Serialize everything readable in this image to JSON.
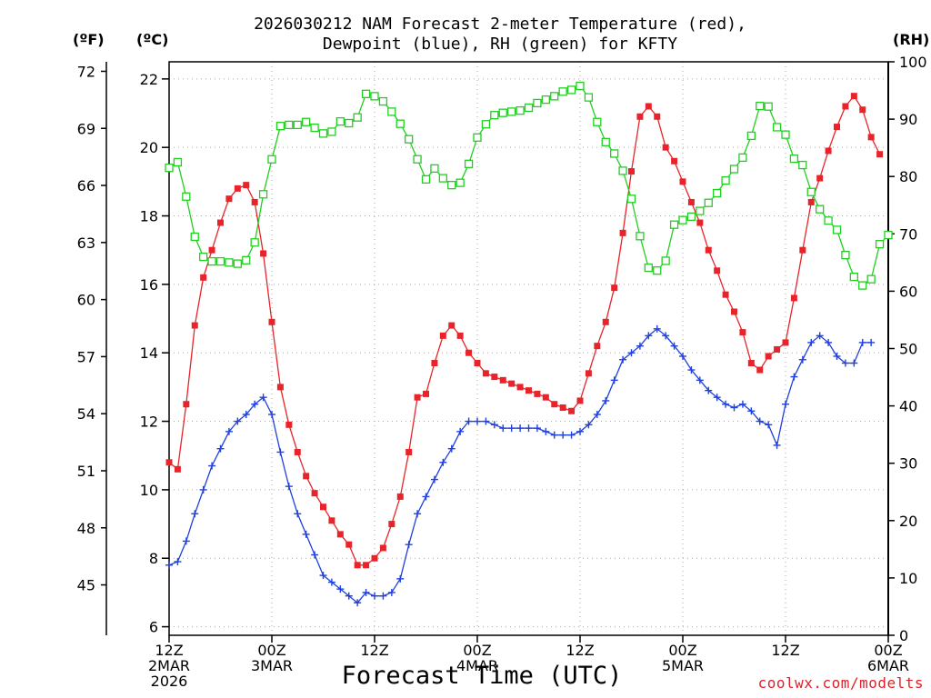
{
  "title": {
    "line1": "2026030212 NAM Forecast 2-meter Temperature (red),",
    "line2": "Dewpoint (blue), RH (green) for KFTY"
  },
  "units": {
    "fahrenheit": "(ºF)",
    "celsius": "(ºC)",
    "rh": "(RH)"
  },
  "xlabel": "Forecast Time (UTC)",
  "credit": "coolwx.com/modelts",
  "colors": {
    "temperature": "#e8242a",
    "dewpoint": "#2040e0",
    "rh": "#20d020",
    "grid": "#aaaaaa"
  },
  "chart_data": {
    "type": "line",
    "grid": true,
    "x": {
      "hours_range": [
        0,
        84
      ],
      "ticks": [
        {
          "hour": 0,
          "label": [
            "12Z",
            "2MAR",
            "2026"
          ]
        },
        {
          "hour": 12,
          "label": [
            "00Z",
            "3MAR"
          ]
        },
        {
          "hour": 24,
          "label": [
            "12Z"
          ]
        },
        {
          "hour": 36,
          "label": [
            "00Z",
            "4MAR"
          ]
        },
        {
          "hour": 48,
          "label": [
            "12Z"
          ]
        },
        {
          "hour": 60,
          "label": [
            "00Z",
            "5MAR"
          ]
        },
        {
          "hour": 72,
          "label": [
            "12Z"
          ]
        },
        {
          "hour": 84,
          "label": [
            "00Z",
            "6MAR"
          ]
        }
      ]
    },
    "y_celsius": {
      "range": [
        5.75,
        22.5
      ],
      "ticks": [
        "6",
        "8",
        "10",
        "12",
        "14",
        "16",
        "18",
        "20",
        "22"
      ]
    },
    "y_fahrenheit": {
      "ticks": [
        "45",
        "48",
        "51",
        "54",
        "57",
        "60",
        "63",
        "66",
        "69",
        "72"
      ]
    },
    "y_rh": {
      "range": [
        0,
        100
      ],
      "ticks": [
        "0",
        "10",
        "20",
        "30",
        "40",
        "50",
        "60",
        "70",
        "80",
        "90",
        "100"
      ]
    },
    "series": [
      {
        "name": "Temperature (red)",
        "axis": "celsius",
        "marker": "square",
        "points": [
          [
            0,
            10.8
          ],
          [
            1,
            10.6
          ],
          [
            2,
            12.5
          ],
          [
            3,
            14.8
          ],
          [
            4,
            16.2
          ],
          [
            5,
            17.0
          ],
          [
            6,
            17.8
          ],
          [
            7,
            18.5
          ],
          [
            8,
            18.8
          ],
          [
            9,
            18.9
          ],
          [
            10,
            18.4
          ],
          [
            11,
            16.9
          ],
          [
            12,
            14.9
          ],
          [
            13,
            13.0
          ],
          [
            14,
            11.9
          ],
          [
            15,
            11.1
          ],
          [
            16,
            10.4
          ],
          [
            17,
            9.9
          ],
          [
            18,
            9.5
          ],
          [
            19,
            9.1
          ],
          [
            20,
            8.7
          ],
          [
            21,
            8.4
          ],
          [
            22,
            7.8
          ],
          [
            23,
            7.8
          ],
          [
            24,
            8.0
          ],
          [
            25,
            8.3
          ],
          [
            26,
            9.0
          ],
          [
            27,
            9.8
          ],
          [
            28,
            11.1
          ],
          [
            29,
            12.7
          ],
          [
            30,
            12.8
          ],
          [
            31,
            13.7
          ],
          [
            32,
            14.5
          ],
          [
            33,
            14.8
          ],
          [
            34,
            14.5
          ],
          [
            35,
            14.0
          ],
          [
            36,
            13.7
          ],
          [
            37,
            13.4
          ],
          [
            38,
            13.3
          ],
          [
            39,
            13.2
          ],
          [
            40,
            13.1
          ],
          [
            41,
            13.0
          ],
          [
            42,
            12.9
          ],
          [
            43,
            12.8
          ],
          [
            44,
            12.7
          ],
          [
            45,
            12.5
          ],
          [
            46,
            12.4
          ],
          [
            47,
            12.3
          ],
          [
            48,
            12.6
          ],
          [
            49,
            13.4
          ],
          [
            50,
            14.2
          ],
          [
            51,
            14.9
          ],
          [
            52,
            15.9
          ],
          [
            53,
            17.5
          ],
          [
            54,
            19.3
          ],
          [
            55,
            20.9
          ],
          [
            56,
            21.2
          ],
          [
            57,
            20.9
          ],
          [
            58,
            20.0
          ],
          [
            59,
            19.6
          ],
          [
            60,
            19.0
          ],
          [
            61,
            18.4
          ],
          [
            62,
            17.8
          ],
          [
            63,
            17.0
          ],
          [
            64,
            16.4
          ],
          [
            65,
            15.7
          ],
          [
            66,
            15.2
          ],
          [
            67,
            14.6
          ],
          [
            68,
            13.7
          ],
          [
            69,
            13.5
          ],
          [
            70,
            13.9
          ],
          [
            71,
            14.1
          ],
          [
            72,
            14.3
          ],
          [
            73,
            15.6
          ],
          [
            74,
            17.0
          ],
          [
            75,
            18.4
          ],
          [
            76,
            19.1
          ],
          [
            77,
            19.9
          ],
          [
            78,
            20.6
          ],
          [
            79,
            21.2
          ],
          [
            80,
            21.5
          ],
          [
            81,
            21.1
          ],
          [
            82,
            20.3
          ],
          [
            83,
            19.8
          ]
        ]
      },
      {
        "name": "Dewpoint (blue)",
        "axis": "celsius",
        "marker": "plus",
        "points": [
          [
            0,
            7.8
          ],
          [
            1,
            7.9
          ],
          [
            2,
            8.5
          ],
          [
            3,
            9.3
          ],
          [
            4,
            10.0
          ],
          [
            5,
            10.7
          ],
          [
            6,
            11.2
          ],
          [
            7,
            11.7
          ],
          [
            8,
            12.0
          ],
          [
            9,
            12.2
          ],
          [
            10,
            12.5
          ],
          [
            11,
            12.7
          ],
          [
            12,
            12.2
          ],
          [
            13,
            11.1
          ],
          [
            14,
            10.1
          ],
          [
            15,
            9.3
          ],
          [
            16,
            8.7
          ],
          [
            17,
            8.1
          ],
          [
            18,
            7.5
          ],
          [
            19,
            7.3
          ],
          [
            20,
            7.1
          ],
          [
            21,
            6.9
          ],
          [
            22,
            6.7
          ],
          [
            23,
            7.0
          ],
          [
            24,
            6.9
          ],
          [
            25,
            6.9
          ],
          [
            26,
            7.0
          ],
          [
            27,
            7.4
          ],
          [
            28,
            8.4
          ],
          [
            29,
            9.3
          ],
          [
            30,
            9.8
          ],
          [
            31,
            10.3
          ],
          [
            32,
            10.8
          ],
          [
            33,
            11.2
          ],
          [
            34,
            11.7
          ],
          [
            35,
            12.0
          ],
          [
            36,
            12.0
          ],
          [
            37,
            12.0
          ],
          [
            38,
            11.9
          ],
          [
            39,
            11.8
          ],
          [
            40,
            11.8
          ],
          [
            41,
            11.8
          ],
          [
            42,
            11.8
          ],
          [
            43,
            11.8
          ],
          [
            44,
            11.7
          ],
          [
            45,
            11.6
          ],
          [
            46,
            11.6
          ],
          [
            47,
            11.6
          ],
          [
            48,
            11.7
          ],
          [
            49,
            11.9
          ],
          [
            50,
            12.2
          ],
          [
            51,
            12.6
          ],
          [
            52,
            13.2
          ],
          [
            53,
            13.8
          ],
          [
            54,
            14.0
          ],
          [
            55,
            14.2
          ],
          [
            56,
            14.5
          ],
          [
            57,
            14.7
          ],
          [
            58,
            14.5
          ],
          [
            59,
            14.2
          ],
          [
            60,
            13.9
          ],
          [
            61,
            13.5
          ],
          [
            62,
            13.2
          ],
          [
            63,
            12.9
          ],
          [
            64,
            12.7
          ],
          [
            65,
            12.5
          ],
          [
            66,
            12.4
          ],
          [
            67,
            12.5
          ],
          [
            68,
            12.3
          ],
          [
            69,
            12.0
          ],
          [
            70,
            11.9
          ],
          [
            71,
            11.3
          ],
          [
            72,
            12.5
          ],
          [
            73,
            13.3
          ],
          [
            74,
            13.8
          ],
          [
            75,
            14.3
          ],
          [
            76,
            14.5
          ],
          [
            77,
            14.3
          ],
          [
            78,
            13.9
          ],
          [
            79,
            13.7
          ],
          [
            80,
            13.7
          ],
          [
            81,
            14.3
          ],
          [
            82,
            14.3
          ]
        ]
      },
      {
        "name": "RH (green)",
        "axis": "rh",
        "marker": "open-square",
        "points": [
          [
            0,
            81.5
          ],
          [
            1,
            82.5
          ],
          [
            2,
            76.5
          ],
          [
            3,
            69.5
          ],
          [
            4,
            66.0
          ],
          [
            5,
            65.2
          ],
          [
            6,
            65.2
          ],
          [
            7,
            65.0
          ],
          [
            8,
            64.8
          ],
          [
            9,
            65.4
          ],
          [
            10,
            68.5
          ],
          [
            11,
            76.9
          ],
          [
            12,
            83.0
          ],
          [
            13,
            88.8
          ],
          [
            14,
            89.0
          ],
          [
            15,
            89.0
          ],
          [
            16,
            89.5
          ],
          [
            17,
            88.5
          ],
          [
            18,
            87.5
          ],
          [
            19,
            87.8
          ],
          [
            20,
            89.6
          ],
          [
            21,
            89.3
          ],
          [
            22,
            90.3
          ],
          [
            23,
            94.4
          ],
          [
            24,
            94.0
          ],
          [
            25,
            93.1
          ],
          [
            26,
            91.3
          ],
          [
            27,
            89.2
          ],
          [
            28,
            86.5
          ],
          [
            29,
            83.0
          ],
          [
            30,
            79.5
          ],
          [
            31,
            81.4
          ],
          [
            32,
            79.7
          ],
          [
            33,
            78.5
          ],
          [
            34,
            78.9
          ],
          [
            35,
            82.2
          ],
          [
            36,
            86.8
          ],
          [
            37,
            89.1
          ],
          [
            38,
            90.7
          ],
          [
            39,
            91.1
          ],
          [
            40,
            91.3
          ],
          [
            41,
            91.5
          ],
          [
            42,
            92.0
          ],
          [
            43,
            92.8
          ],
          [
            44,
            93.4
          ],
          [
            45,
            94.0
          ],
          [
            46,
            94.8
          ],
          [
            47,
            95.1
          ],
          [
            48,
            95.8
          ],
          [
            49,
            93.8
          ],
          [
            50,
            89.5
          ],
          [
            51,
            86.0
          ],
          [
            52,
            84.0
          ],
          [
            53,
            81.0
          ],
          [
            54,
            76.1
          ],
          [
            55,
            69.6
          ],
          [
            56,
            64.1
          ],
          [
            57,
            63.6
          ],
          [
            58,
            65.3
          ],
          [
            59,
            71.6
          ],
          [
            60,
            72.4
          ],
          [
            61,
            73.0
          ],
          [
            62,
            74.0
          ],
          [
            63,
            75.4
          ],
          [
            64,
            77.1
          ],
          [
            65,
            79.3
          ],
          [
            66,
            81.3
          ],
          [
            67,
            83.3
          ],
          [
            68,
            87.1
          ],
          [
            69,
            92.3
          ],
          [
            70,
            92.2
          ],
          [
            71,
            88.6
          ],
          [
            72,
            87.3
          ],
          [
            73,
            83.1
          ],
          [
            74,
            82.0
          ],
          [
            75,
            77.3
          ],
          [
            76,
            74.3
          ],
          [
            77,
            72.3
          ],
          [
            78,
            70.7
          ],
          [
            79,
            66.3
          ],
          [
            80,
            62.5
          ],
          [
            81,
            61.0
          ],
          [
            82,
            62.1
          ],
          [
            83,
            68.2
          ],
          [
            84,
            69.8
          ]
        ]
      }
    ]
  }
}
